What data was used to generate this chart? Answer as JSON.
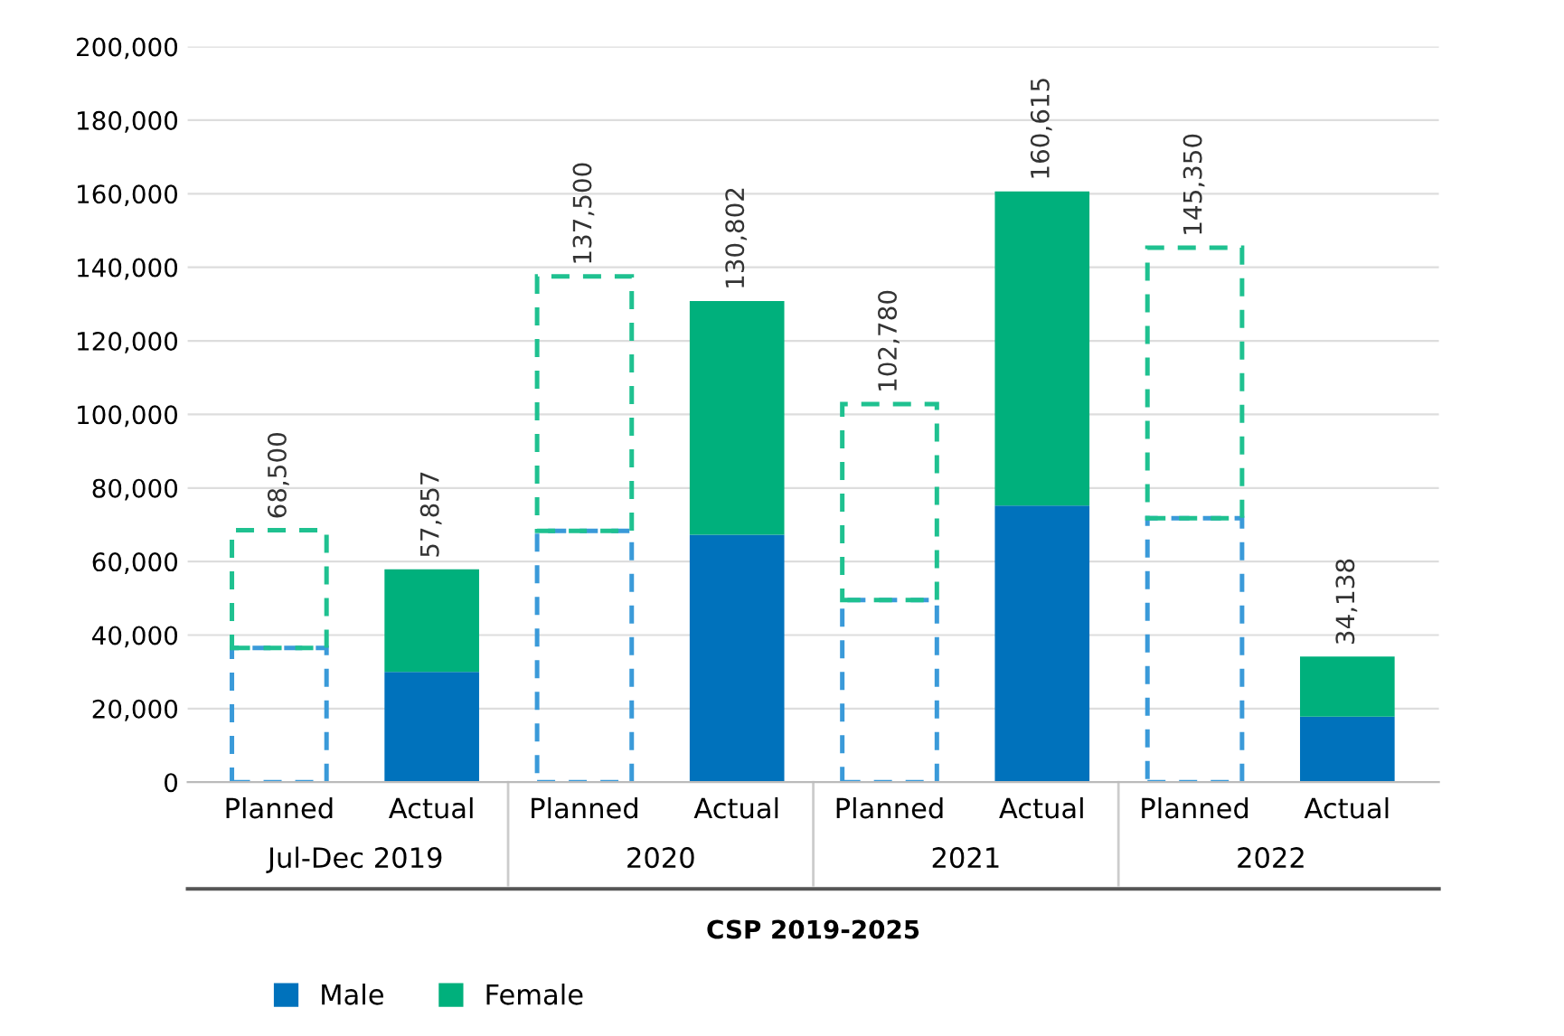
{
  "chart_data": {
    "type": "bar",
    "stacked": true,
    "categories": [
      "Planned",
      "Actual",
      "Planned",
      "Actual",
      "Planned",
      "Actual",
      "Planned",
      "Actual"
    ],
    "xlabel": "CSP 2019-2025",
    "annotations": [
      "Jul-Dec 2019",
      "2020",
      "2021",
      "2022"
    ],
    "series": [
      {
        "name": "Male",
        "color": "#0072bc",
        "values": [
          null,
          30000,
          null,
          67300,
          null,
          75200,
          null,
          17800
        ]
      },
      {
        "color": "#3a9ad9",
        "line_style": "dashed",
        "values": [
          36500,
          null,
          68300,
          null,
          49500,
          null,
          71800,
          null
        ]
      },
      {
        "name": "Female",
        "color": "#00b07c",
        "values": [
          null,
          27857,
          null,
          63502,
          null,
          85415,
          null,
          16338
        ]
      },
      {
        "color": "#1fc190",
        "line_style": "dashed",
        "values": [
          32000,
          null,
          69200,
          null,
          53280,
          null,
          73550,
          null
        ]
      }
    ],
    "totals": [
      "68,500",
      "57,857",
      "137,500",
      "130,802",
      "102,780",
      "160,615",
      "145,350",
      "34,138"
    ],
    "ylim": [
      0,
      200000
    ],
    "yticks": [
      {
        "value": 0,
        "label": "0"
      },
      {
        "value": 20000,
        "label": "20,000"
      },
      {
        "value": 40000,
        "label": "40,000"
      },
      {
        "value": 60000,
        "label": "60,000"
      },
      {
        "value": 80000,
        "label": "80,000"
      },
      {
        "value": 100000,
        "label": "100,000"
      },
      {
        "value": 120000,
        "label": "120,000"
      },
      {
        "value": 140000,
        "label": "140,000"
      },
      {
        "value": 160000,
        "label": "160,000"
      },
      {
        "value": 180000,
        "label": "180,000"
      },
      {
        "value": 200000,
        "label": "200,000"
      }
    ],
    "grid": "y",
    "legend": "bottom left"
  }
}
